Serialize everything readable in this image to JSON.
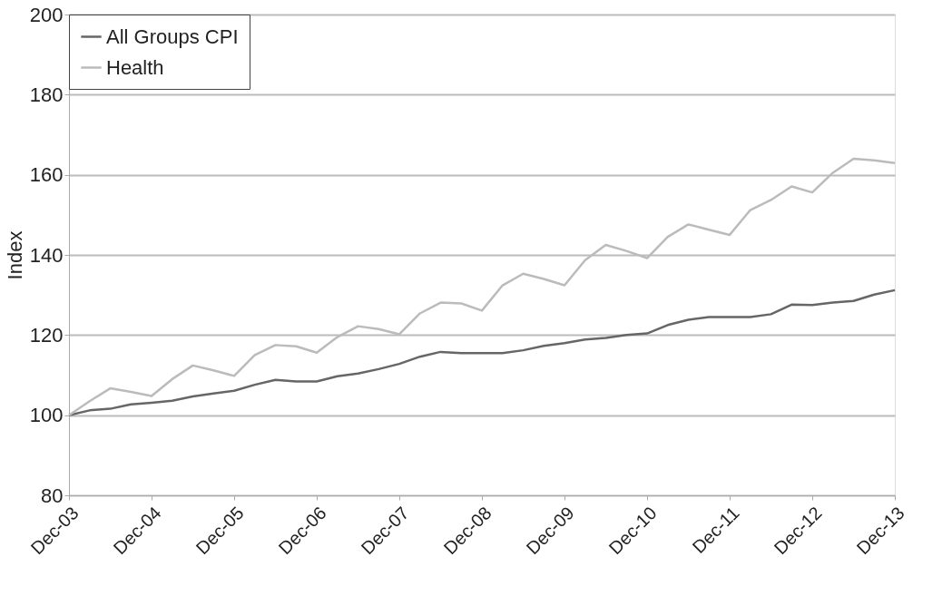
{
  "chart_data": {
    "type": "line",
    "ylabel": "Index",
    "categories": [
      "Dec-03",
      null,
      null,
      null,
      "Dec-04",
      null,
      null,
      null,
      "Dec-05",
      null,
      null,
      null,
      "Dec-06",
      null,
      null,
      null,
      "Dec-07",
      null,
      null,
      null,
      "Dec-08",
      null,
      null,
      null,
      "Dec-09",
      null,
      null,
      null,
      "Dec-10",
      null,
      null,
      null,
      "Dec-11",
      null,
      null,
      null,
      "Dec-12",
      null,
      null,
      null,
      "Dec-13"
    ],
    "series": [
      {
        "name": "All Groups CPI",
        "color": "#666666",
        "values": [
          100,
          101.2,
          101.6,
          102.7,
          103.1,
          103.6,
          104.7,
          105.4,
          106.1,
          107.6,
          108.8,
          108.4,
          108.4,
          109.7,
          110.4,
          111.5,
          112.8,
          114.6,
          115.8,
          115.5,
          115.5,
          115.5,
          116.2,
          117.3,
          118,
          118.9,
          119.3,
          120,
          120.4,
          122.5,
          123.8,
          124.5,
          124.5,
          124.5,
          125.2,
          127.6,
          127.5,
          128.1,
          128.5,
          130.1,
          131.2
        ]
      },
      {
        "name": "Health",
        "color": "#bbbbbb",
        "values": [
          100,
          103.5,
          106.7,
          105.8,
          104.8,
          109,
          112.4,
          111.2,
          109.8,
          115,
          117.5,
          117.2,
          115.6,
          119.5,
          122.2,
          121.5,
          120.2,
          125.4,
          128.1,
          127.9,
          126.1,
          132.4,
          135.3,
          134,
          132.4,
          138.7,
          142.5,
          141,
          139.2,
          144.5,
          147.6,
          146.3,
          145,
          151.2,
          153.7,
          157.1,
          155.6,
          160.5,
          164,
          163.6,
          162.9
        ]
      }
    ],
    "ylim": [
      80,
      200
    ],
    "yticks": [
      80,
      100,
      120,
      140,
      160,
      180,
      200
    ],
    "grid": "y",
    "legend": "top left",
    "line_style": "solid",
    "marker": "none"
  }
}
